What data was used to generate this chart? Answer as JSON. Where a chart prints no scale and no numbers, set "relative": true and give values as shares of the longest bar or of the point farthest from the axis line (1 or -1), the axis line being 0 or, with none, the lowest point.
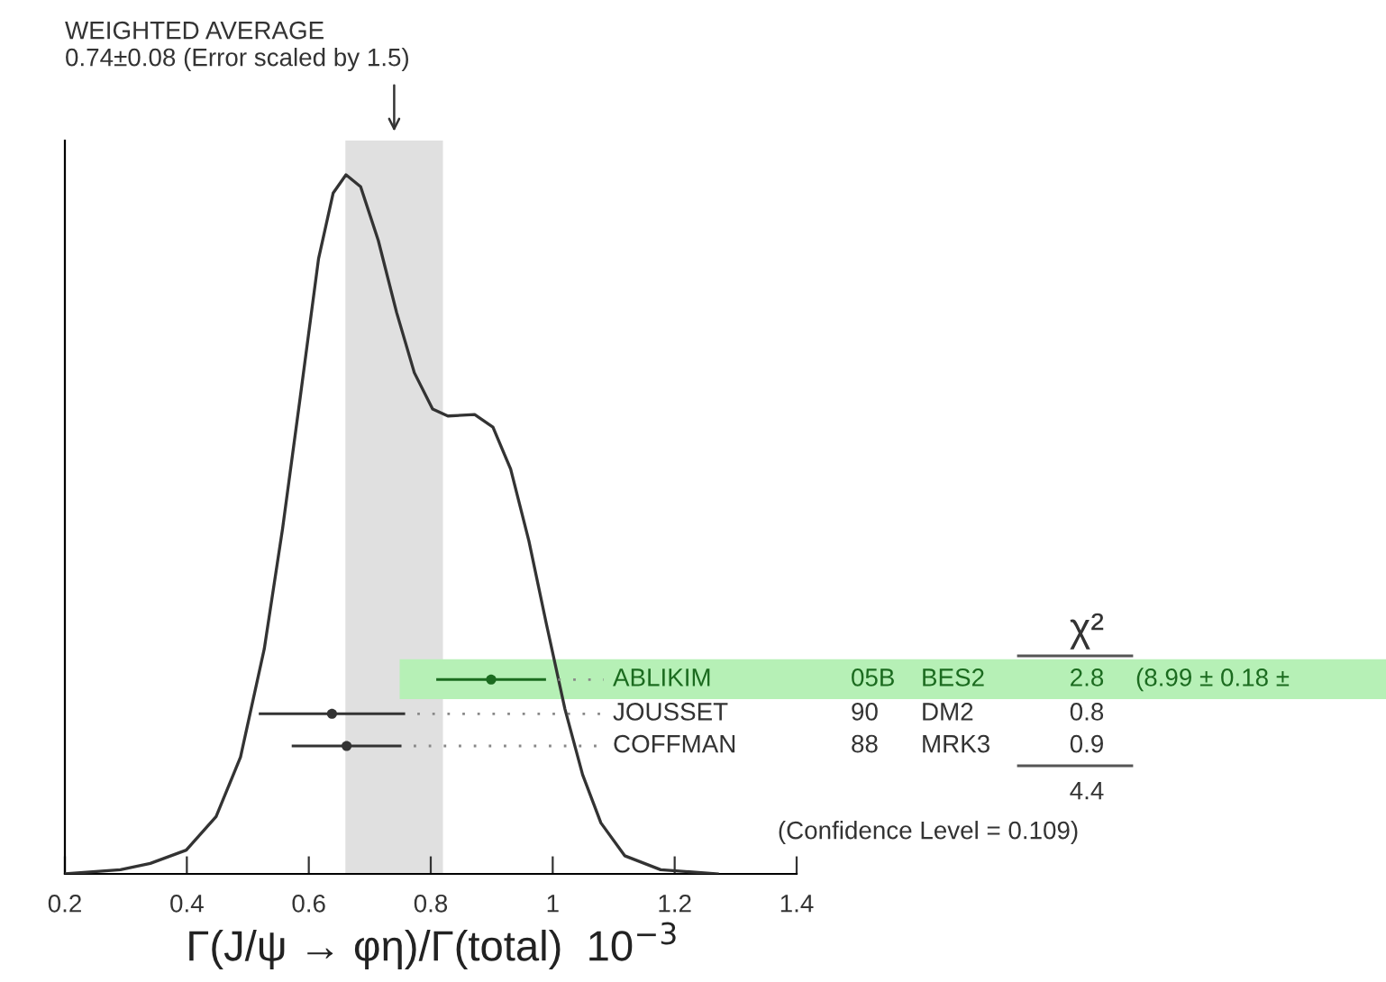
{
  "chart_data": {
    "type": "line",
    "title": "WEIGHTED AVERAGE",
    "subtitle": "0.74±0.08 (Error scaled by 1.5)",
    "xlabel": "Γ(J/ψ → φη)/Γ(total)  10$^{−3}$",
    "relative": true,
    "xlim": [
      0.2,
      1.4
    ],
    "xticks": [
      0.2,
      0.4,
      0.6,
      0.8,
      1,
      1.2,
      1.4
    ],
    "series": [
      {
        "color": "#333333",
        "x": [
          0.2,
          0.291,
          0.34,
          0.399,
          0.448,
          0.488,
          0.527,
          0.557,
          0.586,
          0.616,
          0.64,
          0.661,
          0.685,
          0.714,
          0.744,
          0.773,
          0.803,
          0.828,
          0.872,
          0.902,
          0.931,
          0.961,
          0.99,
          1.02,
          1.049,
          1.079,
          1.118,
          1.177,
          1.27
        ],
        "values": [
          0,
          0.006,
          0.015,
          0.034,
          0.082,
          0.167,
          0.322,
          0.494,
          0.682,
          0.88,
          0.974,
          1,
          0.983,
          0.906,
          0.803,
          0.717,
          0.665,
          0.655,
          0.657,
          0.639,
          0.579,
          0.476,
          0.356,
          0.236,
          0.142,
          0.073,
          0.026,
          0.006,
          0
        ]
      },
      {
        "type": "scatter",
        "name": "ABLIKIM",
        "color": "#1b6b1f",
        "x": [
          0.899
        ],
        "values": [
          0.278
        ],
        "xerrors": [
          0.09
        ]
      },
      {
        "type": "scatter",
        "name": "JOUSSET",
        "color": "#333333",
        "x": [
          0.638
        ],
        "values": [
          0.229
        ],
        "xerrors": [
          0.12
        ]
      },
      {
        "type": "scatter",
        "name": "COFFMAN",
        "color": "#333333",
        "x": [
          0.662
        ],
        "values": [
          0.183
        ],
        "xerrors": [
          0.09
        ]
      }
    ],
    "bands": [
      {
        "axis": "x",
        "from": 0.66,
        "to": 0.82,
        "color": "#e0e0e0"
      },
      {
        "axis": "y",
        "from": 0.25,
        "to": 0.307,
        "color": "#b6f0b6"
      }
    ],
    "annotations": [
      "χ²",
      "05B",
      "BES2",
      "2.8",
      "(8.99 ± 0.18 ±",
      "90",
      "DM2",
      "0.8",
      "88",
      "MRK3",
      "0.9",
      "4.4",
      "(Confidence Level = 0.109)"
    ]
  }
}
